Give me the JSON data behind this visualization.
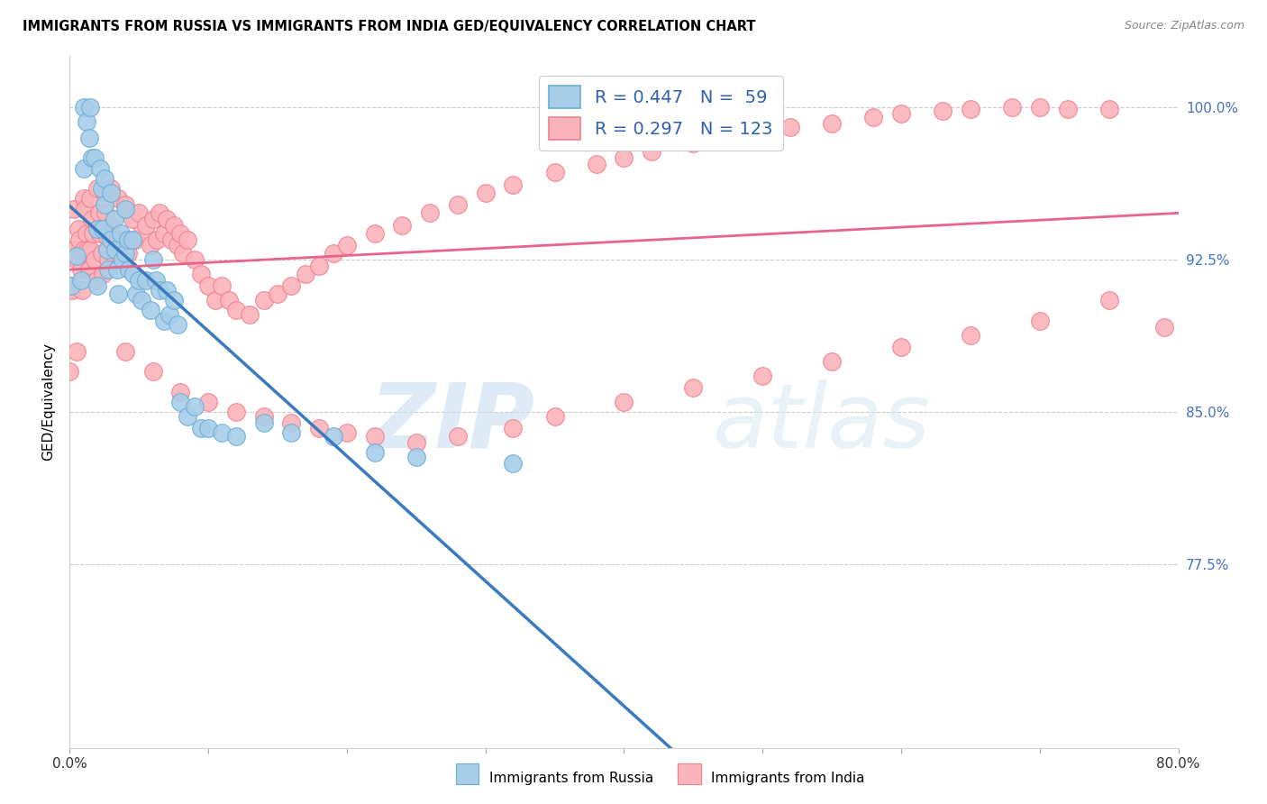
{
  "title": "IMMIGRANTS FROM RUSSIA VS IMMIGRANTS FROM INDIA GED/EQUIVALENCY CORRELATION CHART",
  "source": "Source: ZipAtlas.com",
  "ylabel": "GED/Equivalency",
  "ytick_labels": [
    "100.0%",
    "92.5%",
    "85.0%",
    "77.5%"
  ],
  "ytick_values": [
    1.0,
    0.925,
    0.85,
    0.775
  ],
  "xlim": [
    0.0,
    0.8
  ],
  "ylim": [
    0.685,
    1.025
  ],
  "russia_color": "#a8cde8",
  "russia_edge_color": "#6aadd5",
  "india_color": "#fbb4bb",
  "india_edge_color": "#f08090",
  "russia_line_color": "#3a7abf",
  "india_line_color": "#e8648c",
  "russia_R": 0.447,
  "russia_N": 59,
  "india_R": 0.297,
  "india_N": 123,
  "russia_x": [
    0.001,
    0.005,
    0.008,
    0.01,
    0.01,
    0.012,
    0.014,
    0.015,
    0.016,
    0.018,
    0.02,
    0.02,
    0.022,
    0.023,
    0.024,
    0.025,
    0.025,
    0.027,
    0.028,
    0.03,
    0.03,
    0.032,
    0.033,
    0.034,
    0.035,
    0.037,
    0.038,
    0.04,
    0.04,
    0.042,
    0.043,
    0.045,
    0.046,
    0.048,
    0.05,
    0.052,
    0.055,
    0.058,
    0.06,
    0.062,
    0.065,
    0.068,
    0.07,
    0.072,
    0.075,
    0.078,
    0.08,
    0.085,
    0.09,
    0.095,
    0.1,
    0.11,
    0.12,
    0.14,
    0.16,
    0.19,
    0.22,
    0.25,
    0.32
  ],
  "russia_y": [
    0.912,
    0.927,
    0.915,
    0.97,
    1.0,
    0.993,
    0.985,
    1.0,
    0.975,
    0.975,
    0.94,
    0.912,
    0.97,
    0.96,
    0.94,
    0.965,
    0.952,
    0.93,
    0.92,
    0.958,
    0.935,
    0.945,
    0.93,
    0.92,
    0.908,
    0.938,
    0.925,
    0.95,
    0.928,
    0.935,
    0.92,
    0.935,
    0.918,
    0.908,
    0.915,
    0.905,
    0.915,
    0.9,
    0.925,
    0.915,
    0.91,
    0.895,
    0.91,
    0.898,
    0.905,
    0.893,
    0.855,
    0.848,
    0.853,
    0.842,
    0.842,
    0.84,
    0.838,
    0.845,
    0.84,
    0.838,
    0.83,
    0.828,
    0.825
  ],
  "india_x": [
    0.0,
    0.0,
    0.001,
    0.002,
    0.003,
    0.004,
    0.005,
    0.005,
    0.006,
    0.007,
    0.008,
    0.009,
    0.01,
    0.01,
    0.011,
    0.012,
    0.013,
    0.014,
    0.015,
    0.015,
    0.016,
    0.017,
    0.018,
    0.019,
    0.02,
    0.02,
    0.021,
    0.022,
    0.023,
    0.024,
    0.025,
    0.025,
    0.026,
    0.027,
    0.028,
    0.03,
    0.03,
    0.032,
    0.033,
    0.035,
    0.035,
    0.037,
    0.04,
    0.04,
    0.042,
    0.045,
    0.047,
    0.05,
    0.052,
    0.055,
    0.058,
    0.06,
    0.063,
    0.065,
    0.068,
    0.07,
    0.073,
    0.075,
    0.078,
    0.08,
    0.082,
    0.085,
    0.09,
    0.095,
    0.1,
    0.105,
    0.11,
    0.115,
    0.12,
    0.13,
    0.14,
    0.15,
    0.16,
    0.17,
    0.18,
    0.19,
    0.2,
    0.22,
    0.24,
    0.26,
    0.28,
    0.3,
    0.32,
    0.35,
    0.38,
    0.4,
    0.42,
    0.45,
    0.48,
    0.5,
    0.52,
    0.55,
    0.58,
    0.6,
    0.63,
    0.65,
    0.68,
    0.7,
    0.72,
    0.75,
    0.04,
    0.06,
    0.08,
    0.1,
    0.12,
    0.14,
    0.16,
    0.18,
    0.2,
    0.22,
    0.25,
    0.28,
    0.32,
    0.35,
    0.4,
    0.45,
    0.5,
    0.55,
    0.6,
    0.65,
    0.7,
    0.75,
    0.79
  ],
  "india_y": [
    0.912,
    0.87,
    0.93,
    0.91,
    0.95,
    0.93,
    0.925,
    0.88,
    0.94,
    0.935,
    0.92,
    0.91,
    0.955,
    0.93,
    0.95,
    0.938,
    0.93,
    0.92,
    0.955,
    0.93,
    0.945,
    0.938,
    0.925,
    0.915,
    0.96,
    0.94,
    0.948,
    0.938,
    0.928,
    0.918,
    0.958,
    0.94,
    0.948,
    0.936,
    0.925,
    0.96,
    0.942,
    0.935,
    0.925,
    0.955,
    0.935,
    0.925,
    0.952,
    0.935,
    0.928,
    0.945,
    0.935,
    0.948,
    0.938,
    0.942,
    0.932,
    0.945,
    0.935,
    0.948,
    0.938,
    0.945,
    0.935,
    0.942,
    0.932,
    0.938,
    0.928,
    0.935,
    0.925,
    0.918,
    0.912,
    0.905,
    0.912,
    0.905,
    0.9,
    0.898,
    0.905,
    0.908,
    0.912,
    0.918,
    0.922,
    0.928,
    0.932,
    0.938,
    0.942,
    0.948,
    0.952,
    0.958,
    0.962,
    0.968,
    0.972,
    0.975,
    0.978,
    0.982,
    0.985,
    0.988,
    0.99,
    0.992,
    0.995,
    0.997,
    0.998,
    0.999,
    1.0,
    1.0,
    0.999,
    0.999,
    0.88,
    0.87,
    0.86,
    0.855,
    0.85,
    0.848,
    0.845,
    0.842,
    0.84,
    0.838,
    0.835,
    0.838,
    0.842,
    0.848,
    0.855,
    0.862,
    0.868,
    0.875,
    0.882,
    0.888,
    0.895,
    0.905,
    0.892
  ],
  "watermark_zip": "ZIP",
  "watermark_atlas": "atlas",
  "legend_russia": "R = 0.447   N =  59",
  "legend_india": "R = 0.297   N = 123",
  "bottom_legend_russia": "Immigrants from Russia",
  "bottom_legend_india": "Immigrants from India"
}
